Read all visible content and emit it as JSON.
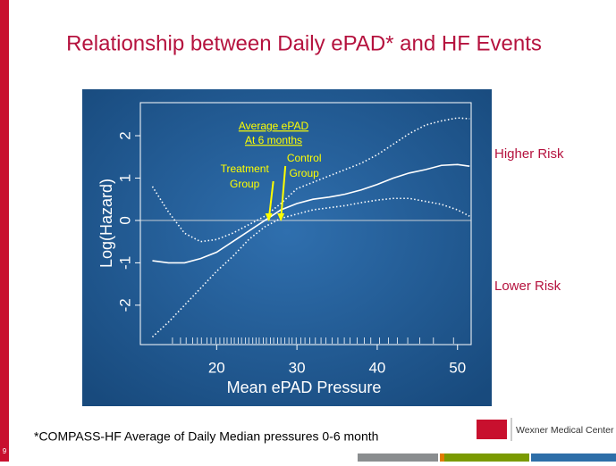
{
  "slide": {
    "footnote": "*COMPASS-HF  Average of Daily Median pressures 0-6 month",
    "logo_text": "Wexner Medical Center",
    "slide_number": "9",
    "higher_label": "Higher Risk",
    "lower_label": "Lower Risk"
  },
  "chart_data": {
    "type": "line",
    "title": "Relationship between Daily ePAD* and HF Events",
    "xlabel": "Mean ePAD Pressure",
    "ylabel": "Log(Hazard)",
    "xlim": [
      10.5,
      51.7
    ],
    "ylim": [
      -2.93,
      2.78
    ],
    "xticks": [
      20,
      30,
      40,
      50
    ],
    "yticks": [
      -2,
      -1,
      0,
      1,
      2
    ],
    "hline": 0,
    "x": [
      12,
      14,
      16,
      18,
      20,
      22,
      24,
      26,
      28,
      30,
      32,
      34,
      36,
      38,
      40,
      42,
      44,
      46,
      48,
      50,
      51.5
    ],
    "series": [
      {
        "color": "#ffffff",
        "style": "solid",
        "values": [
          -0.95,
          -1.0,
          -1.0,
          -0.9,
          -0.75,
          -0.5,
          -0.25,
          0,
          0.25,
          0.4,
          0.5,
          0.55,
          0.62,
          0.72,
          0.85,
          1.0,
          1.12,
          1.2,
          1.3,
          1.32,
          1.28
        ]
      },
      {
        "color": "#ffffff",
        "style": "dotted",
        "values": [
          0.8,
          0.2,
          -0.3,
          -0.5,
          -0.45,
          -0.3,
          -0.1,
          0.1,
          0.4,
          0.75,
          0.9,
          1.05,
          1.2,
          1.35,
          1.55,
          1.8,
          2.05,
          2.25,
          2.35,
          2.42,
          2.4
        ]
      },
      {
        "color": "#ffffff",
        "style": "dotted",
        "values": [
          -2.75,
          -2.4,
          -2.0,
          -1.6,
          -1.2,
          -0.85,
          -0.45,
          -0.15,
          0.05,
          0.15,
          0.25,
          0.3,
          0.35,
          0.42,
          0.48,
          0.52,
          0.52,
          0.45,
          0.38,
          0.25,
          0.1
        ]
      }
    ],
    "rug": [
      14.5,
      15.5,
      16.2,
      17,
      17.6,
      18.1,
      18.8,
      19.3,
      19.9,
      20.4,
      20.9,
      21.3,
      21.8,
      22.2,
      22.7,
      23.1,
      23.6,
      24,
      24.5,
      24.9,
      25.3,
      25.8,
      26.2,
      26.7,
      27.1,
      27.6,
      28,
      28.5,
      29,
      29.4,
      29.9,
      30.5,
      31,
      31.6,
      32.3,
      33,
      33.6,
      34.4,
      35.1,
      35.9,
      36.6,
      37.5,
      38.4,
      39.2,
      40.3,
      41.4,
      42.5,
      43.8,
      45.3,
      47,
      49.5
    ],
    "highlight": {
      "lines": [
        "Average ePAD",
        "At 6 months"
      ],
      "color": "#ffff00"
    },
    "arrows": [
      {
        "lines": [
          "Treatment",
          "Group"
        ],
        "x": 26.5
      },
      {
        "lines": [
          "Control",
          "Group"
        ],
        "x": 28
      }
    ]
  }
}
